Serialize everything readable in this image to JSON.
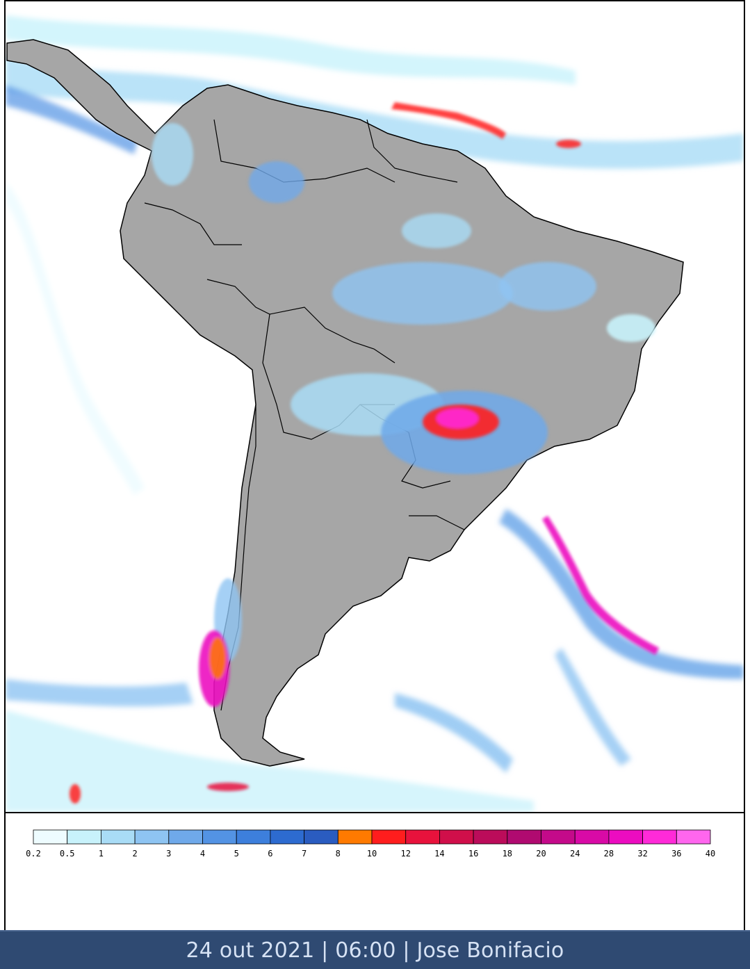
{
  "colors": {
    "land": "#a6a6a6",
    "ocean": "#ffffff",
    "border": "#000000",
    "caption_bg": "#2f4a72",
    "caption_text": "#d6e2f4"
  },
  "legend": {
    "labels": [
      "0.2",
      "0.5",
      "1",
      "2",
      "3",
      "4",
      "5",
      "6",
      "7",
      "8",
      "10",
      "12",
      "14",
      "16",
      "18",
      "20",
      "24",
      "28",
      "32",
      "36",
      "40"
    ],
    "colors": [
      "#eefcff",
      "#c8f2fb",
      "#a9dcf6",
      "#8ec4f2",
      "#6fa9ea",
      "#5393e4",
      "#3d7fdc",
      "#2d6bd0",
      "#2a5cc0",
      "#ff7a00",
      "#ff1d1d",
      "#e8123c",
      "#d00f4a",
      "#bb0c5a",
      "#b00a70",
      "#c40a8a",
      "#d80aa6",
      "#ec0cc0",
      "#ff2ad8",
      "#ff66ee"
    ]
  },
  "caption": {
    "text": "24 out 2021 | 06:00 | Jose Bonifacio"
  }
}
